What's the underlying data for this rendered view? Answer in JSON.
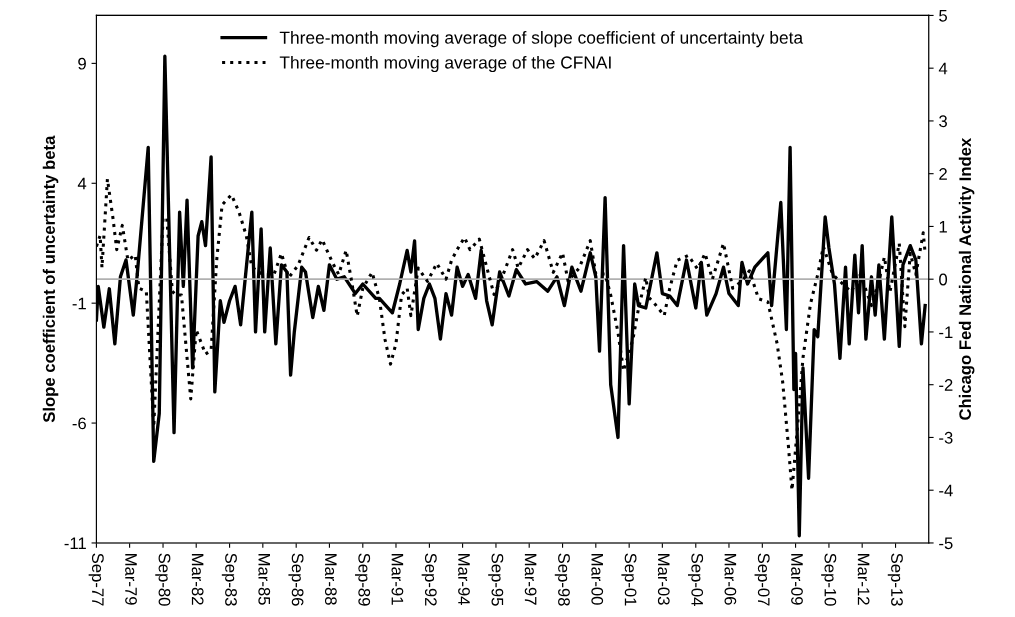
{
  "chart_data": {
    "type": "line",
    "ylabel": "Slope coefficient of uncertainty beta",
    "y2label": "Chicago Fed National Activity Index",
    "ylim": [
      -11,
      11
    ],
    "yticks": [
      -11,
      -6,
      -1,
      4,
      9
    ],
    "y2lim": [
      -5,
      5
    ],
    "y2ticks": [
      -5,
      -4,
      -3,
      -2,
      -1,
      0,
      1,
      2,
      3,
      4,
      5
    ],
    "xlim": [
      "1977-09",
      "2015-03"
    ],
    "xticks": [
      {
        "value": "1977-09",
        "label": "Sep-77"
      },
      {
        "value": "1979-03",
        "label": "Mar-79"
      },
      {
        "value": "1980-09",
        "label": "Sep-80"
      },
      {
        "value": "1982-03",
        "label": "Mar-82"
      },
      {
        "value": "1983-09",
        "label": "Sep-83"
      },
      {
        "value": "1985-03",
        "label": "Mar-85"
      },
      {
        "value": "1986-09",
        "label": "Sep-86"
      },
      {
        "value": "1988-03",
        "label": "Mar-88"
      },
      {
        "value": "1989-09",
        "label": "Sep-89"
      },
      {
        "value": "1991-03",
        "label": "Mar-91"
      },
      {
        "value": "1992-09",
        "label": "Sep-92"
      },
      {
        "value": "1994-03",
        "label": "Mar-94"
      },
      {
        "value": "1995-09",
        "label": "Sep-95"
      },
      {
        "value": "1997-03",
        "label": "Mar-97"
      },
      {
        "value": "1998-09",
        "label": "Sep-98"
      },
      {
        "value": "2000-03",
        "label": "Mar-00"
      },
      {
        "value": "2001-09",
        "label": "Sep-01"
      },
      {
        "value": "2003-03",
        "label": "Mar-03"
      },
      {
        "value": "2004-09",
        "label": "Sep-04"
      },
      {
        "value": "2006-03",
        "label": "Mar-06"
      },
      {
        "value": "2007-09",
        "label": "Sep-07"
      },
      {
        "value": "2009-03",
        "label": "Mar-09"
      },
      {
        "value": "2010-09",
        "label": "Sep-10"
      },
      {
        "value": "2012-03",
        "label": "Mar-12"
      },
      {
        "value": "2013-09",
        "label": "Sep-13"
      }
    ],
    "legend": "top",
    "grid": false,
    "ref_lines": [
      {
        "axis": "y2",
        "value": 0,
        "color": "#b0b0b0"
      }
    ],
    "series": [
      {
        "name": "Three-month moving average of slope coefficient of uncertainty beta",
        "color": "#000000",
        "line_style": "solid",
        "x": [
          "1977-09",
          "1977-10",
          "1978-01",
          "1978-04",
          "1978-07",
          "1978-10",
          "1979-01",
          "1979-05",
          "1979-07",
          "1980-01",
          "1980-04",
          "1980-07",
          "1980-10",
          "1981-03",
          "1981-06",
          "1981-08",
          "1981-10",
          "1982-01",
          "1982-04",
          "1982-06",
          "1982-08",
          "1982-11",
          "1983-01",
          "1983-04",
          "1983-06",
          "1983-09",
          "1983-12",
          "1984-03",
          "1984-09",
          "1984-11",
          "1985-02",
          "1985-04",
          "1985-07",
          "1985-10",
          "1986-01",
          "1986-04",
          "1986-06",
          "1986-08",
          "1986-12",
          "1987-02",
          "1987-06",
          "1987-09",
          "1987-12",
          "1988-03",
          "1988-07",
          "1988-11",
          "1989-05",
          "1989-09",
          "1990-04",
          "1990-06",
          "1991-01",
          "1991-05",
          "1991-09",
          "1991-11",
          "1992-01",
          "1992-03",
          "1992-06",
          "1992-09",
          "1992-12",
          "1993-03",
          "1993-06",
          "1993-09",
          "1993-12",
          "1994-03",
          "1994-06",
          "1994-10",
          "1995-01",
          "1995-04",
          "1995-07",
          "1995-11",
          "1996-04",
          "1996-08",
          "1997-01",
          "1997-07",
          "1998-01",
          "1998-06",
          "1998-10",
          "1999-02",
          "1999-07",
          "1999-12",
          "2000-03",
          "2000-05",
          "2000-08",
          "2000-11",
          "2001-03",
          "2001-06",
          "2001-09",
          "2001-12",
          "2002-02",
          "2002-06",
          "2002-12",
          "2003-03",
          "2003-07",
          "2003-11",
          "2004-04",
          "2004-09",
          "2004-12",
          "2005-03",
          "2005-08",
          "2005-12",
          "2006-03",
          "2006-08",
          "2006-10",
          "2007-01",
          "2007-05",
          "2007-12",
          "2008-02",
          "2008-07",
          "2008-10",
          "2008-12",
          "2009-02",
          "2009-03",
          "2009-05",
          "2009-07",
          "2009-10",
          "2010-01",
          "2010-03",
          "2010-07",
          "2010-09",
          "2010-12",
          "2011-03",
          "2011-06",
          "2011-08",
          "2011-11",
          "2012-01",
          "2012-03",
          "2012-05",
          "2012-08",
          "2012-10",
          "2012-12",
          "2013-03",
          "2013-07",
          "2013-11",
          "2014-01",
          "2014-05",
          "2014-08",
          "2014-11",
          "2015-01"
        ],
        "values": [
          -1.7,
          -0.3,
          -2.0,
          -0.4,
          -2.7,
          0.1,
          0.8,
          -1.5,
          0.1,
          5.5,
          -7.6,
          -5.6,
          9.3,
          -6.4,
          2.8,
          -0.3,
          3.3,
          -3.7,
          1.8,
          2.4,
          1.4,
          5.1,
          -4.7,
          -0.9,
          -1.8,
          -0.9,
          -0.3,
          -1.9,
          2.8,
          -2.2,
          2.1,
          -2.2,
          1.3,
          -2.7,
          0.6,
          0.3,
          -4.0,
          -2.2,
          0.5,
          0.3,
          -1.6,
          -0.3,
          -1.3,
          0.6,
          0.0,
          0.1,
          -0.6,
          -0.2,
          -0.8,
          -0.8,
          -1.4,
          -0.2,
          1.2,
          0.3,
          1.6,
          -2.1,
          -0.8,
          -0.2,
          -0.8,
          -2.5,
          -0.6,
          -1.5,
          0.5,
          -0.3,
          0.2,
          -0.8,
          1.2,
          -0.9,
          -1.9,
          0.3,
          -0.7,
          0.4,
          -0.2,
          -0.1,
          -0.5,
          0.1,
          -1.1,
          0.5,
          -0.5,
          1.1,
          0.1,
          -3.0,
          3.4,
          -4.4,
          -6.6,
          1.4,
          -5.2,
          -0.2,
          -1.1,
          -1.2,
          1.1,
          -0.6,
          -0.7,
          -1.1,
          0.8,
          -1.2,
          0.7,
          -1.5,
          -0.6,
          0.5,
          -0.6,
          -1.1,
          0.7,
          -0.2,
          0.5,
          1.1,
          -1.1,
          3.2,
          -2.1,
          5.5,
          -4.6,
          -3.1,
          -10.7,
          -3.7,
          -8.3,
          -2.1,
          -2.4,
          2.6,
          1.3,
          -0.2,
          -3.3,
          0.5,
          -2.7,
          1.0,
          -1.4,
          1.4,
          -2.5,
          0.1,
          -1.5,
          0.6,
          -2.5,
          2.6,
          -2.8,
          0.6,
          1.4,
          0.8,
          -2.7,
          -1.1
        ]
      },
      {
        "name": "Three-month moving average of the CFNAI",
        "color": "#000000",
        "line_style": "dotted",
        "axis": "y2",
        "x": [
          "1977-09",
          "1977-11",
          "1977-12",
          "1978-03",
          "1978-06",
          "1978-08",
          "1978-11",
          "1979-02",
          "1979-06",
          "1979-08",
          "1979-12",
          "1980-04",
          "1980-09",
          "1980-11",
          "1981-02",
          "1981-04",
          "1981-07",
          "1981-12",
          "1982-03",
          "1982-08",
          "1982-11",
          "1983-02",
          "1983-05",
          "1983-10",
          "1984-02",
          "1984-06",
          "1984-09",
          "1985-03",
          "1985-09",
          "1986-01",
          "1986-05",
          "1986-10",
          "1987-04",
          "1987-08",
          "1987-11",
          "1988-05",
          "1988-08",
          "1988-12",
          "1989-03",
          "1989-06",
          "1989-09",
          "1990-02",
          "1990-06",
          "1990-09",
          "1990-12",
          "1991-03",
          "1991-06",
          "1991-09",
          "1991-11",
          "1992-03",
          "1992-08",
          "1993-01",
          "1993-06",
          "1993-09",
          "1993-12",
          "1994-04",
          "1994-07",
          "1994-12",
          "1995-05",
          "1995-08",
          "1996-01",
          "1996-06",
          "1996-09",
          "1997-02",
          "1997-06",
          "1997-11",
          "1998-04",
          "1998-09",
          "1998-12",
          "1999-06",
          "1999-12",
          "2000-03",
          "2000-08",
          "2000-11",
          "2001-03",
          "2001-06",
          "2001-11",
          "2002-02",
          "2002-06",
          "2002-08",
          "2002-10",
          "2003-04",
          "2003-07",
          "2003-11",
          "2004-05",
          "2004-10",
          "2005-02",
          "2005-06",
          "2005-12",
          "2006-05",
          "2006-10",
          "2007-02",
          "2007-07",
          "2007-12",
          "2008-05",
          "2008-08",
          "2008-11",
          "2009-01",
          "2009-04",
          "2009-07",
          "2009-11",
          "2010-03",
          "2010-06",
          "2010-11",
          "2011-03",
          "2011-09",
          "2012-02",
          "2012-08",
          "2012-12",
          "2013-03",
          "2013-06",
          "2013-11",
          "2014-02",
          "2014-05",
          "2014-08",
          "2014-12",
          "2015-01"
        ],
        "values": [
          0.62,
          0.83,
          0.22,
          1.9,
          1.15,
          0.56,
          1.02,
          0.36,
          0.46,
          -0.17,
          -0.23,
          -2.8,
          1.15,
          1.17,
          -0.23,
          -0.3,
          -0.3,
          -2.27,
          -0.96,
          -1.42,
          -1.35,
          0.36,
          1.41,
          1.6,
          1.28,
          0.83,
          0.23,
          0.09,
          0.09,
          0.49,
          0.03,
          0.26,
          0.79,
          0.55,
          0.75,
          0.29,
          0.09,
          0.55,
          -0.04,
          -0.7,
          -0.17,
          0.13,
          -0.37,
          -1.14,
          -1.61,
          -1.22,
          -0.3,
          -0.17,
          -0.69,
          0.21,
          -0.04,
          0.3,
          0.0,
          0.36,
          0.56,
          0.79,
          0.56,
          0.76,
          0.1,
          -0.29,
          0.1,
          0.56,
          0.21,
          0.56,
          0.39,
          0.73,
          0.13,
          0.5,
          -0.04,
          0.21,
          0.73,
          0.1,
          0.1,
          -0.3,
          -1.01,
          -1.74,
          -1.14,
          -0.56,
          0.03,
          -0.36,
          -0.43,
          -0.69,
          -0.17,
          0.36,
          0.45,
          0.19,
          0.49,
          0.0,
          0.68,
          -0.17,
          -0.04,
          0.16,
          -0.37,
          -0.43,
          -1.22,
          -1.95,
          -3.13,
          -4.0,
          -2.81,
          -1.49,
          -0.47,
          0.09,
          0.62,
          0.09,
          -0.04,
          -0.24,
          0.09,
          -0.5,
          -0.04,
          0.42,
          -0.24,
          0.68,
          -0.9,
          0.49,
          0.09,
          0.88,
          0.49
        ]
      }
    ]
  }
}
